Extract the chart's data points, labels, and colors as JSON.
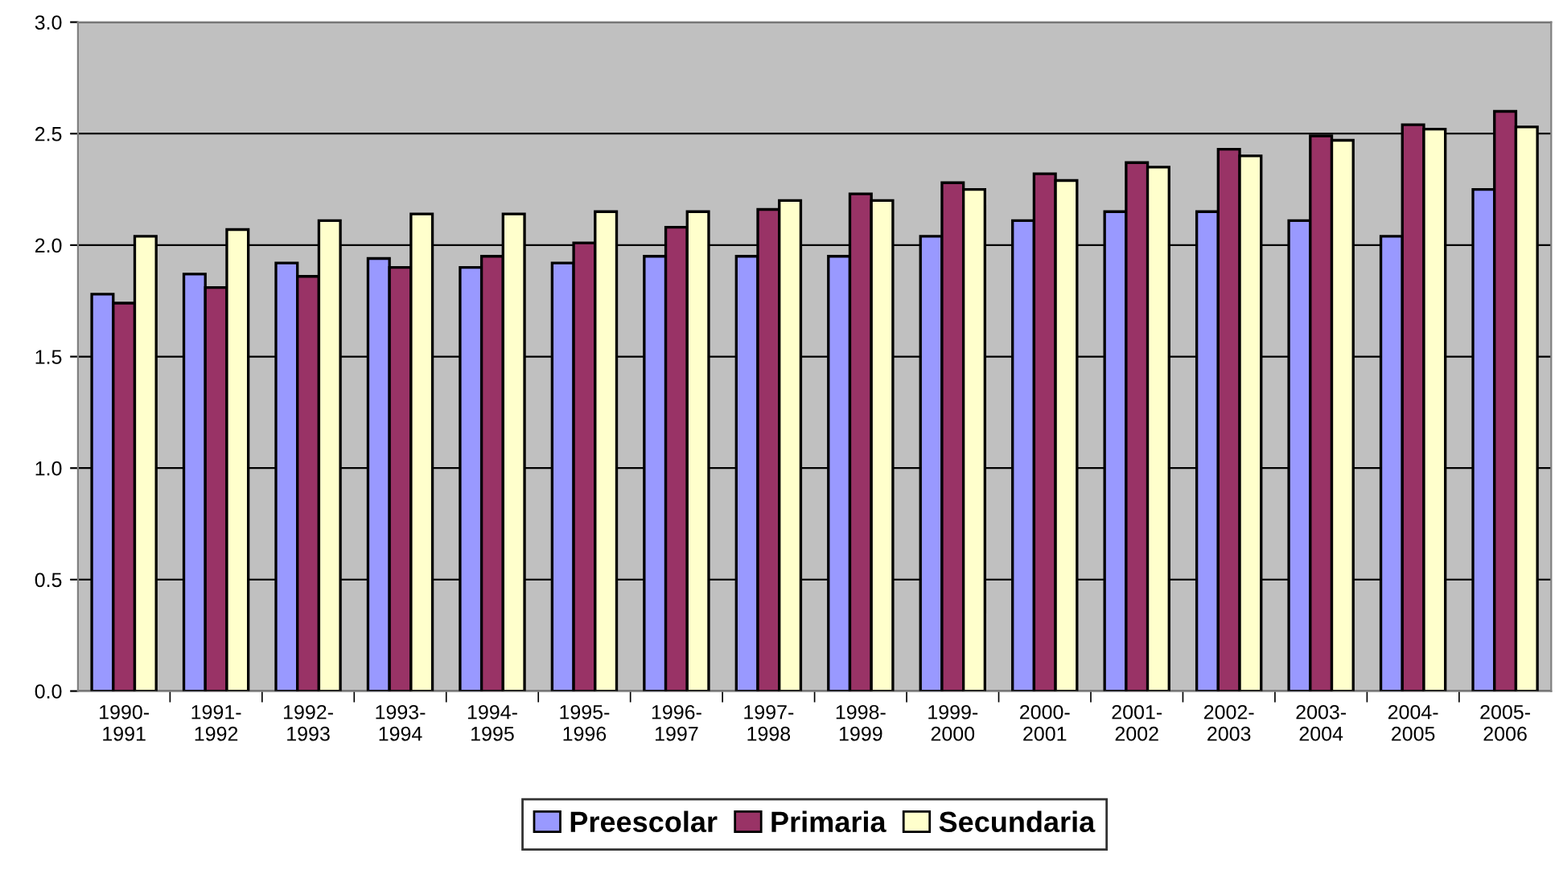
{
  "chart_data": {
    "type": "bar",
    "categories": [
      "1990-\n1991",
      "1991-\n1992",
      "1992-\n1993",
      "1993-\n1994",
      "1994-\n1995",
      "1995-\n1996",
      "1996-\n1997",
      "1997-\n1998",
      "1998-\n1999",
      "1999-\n2000",
      "2000-\n2001",
      "2001-\n2002",
      "2002-\n2003",
      "2003-\n2004",
      "2004-\n2005",
      "2005-\n2006"
    ],
    "series": [
      {
        "name": "Preescolar",
        "color": "#9999ff",
        "values": [
          1.78,
          1.87,
          1.92,
          1.94,
          1.9,
          1.92,
          1.95,
          1.95,
          1.95,
          2.04,
          2.11,
          2.15,
          2.15,
          2.11,
          2.04,
          2.25
        ]
      },
      {
        "name": "Primaria",
        "color": "#993366",
        "values": [
          1.74,
          1.81,
          1.86,
          1.9,
          1.95,
          2.01,
          2.08,
          2.16,
          2.23,
          2.28,
          2.32,
          2.37,
          2.43,
          2.49,
          2.54,
          2.6
        ]
      },
      {
        "name": "Secundaria",
        "color": "#ffffcc",
        "values": [
          2.04,
          2.07,
          2.11,
          2.14,
          2.14,
          2.15,
          2.15,
          2.2,
          2.2,
          2.25,
          2.29,
          2.35,
          2.4,
          2.47,
          2.52,
          2.53
        ]
      }
    ],
    "ylim": [
      0,
      3.0
    ],
    "yticks": [
      {
        "value": 0,
        "label": "0.0"
      },
      {
        "value": 0.5,
        "label": "0.5"
      },
      {
        "value": 1.0,
        "label": "1.0"
      },
      {
        "value": 1.5,
        "label": "1.5"
      },
      {
        "value": 2.0,
        "label": "2.0"
      },
      {
        "value": 2.5,
        "label": "2.5"
      },
      {
        "value": 3.0,
        "label": "3.0"
      }
    ],
    "grid": "y",
    "legend": "bottom"
  }
}
